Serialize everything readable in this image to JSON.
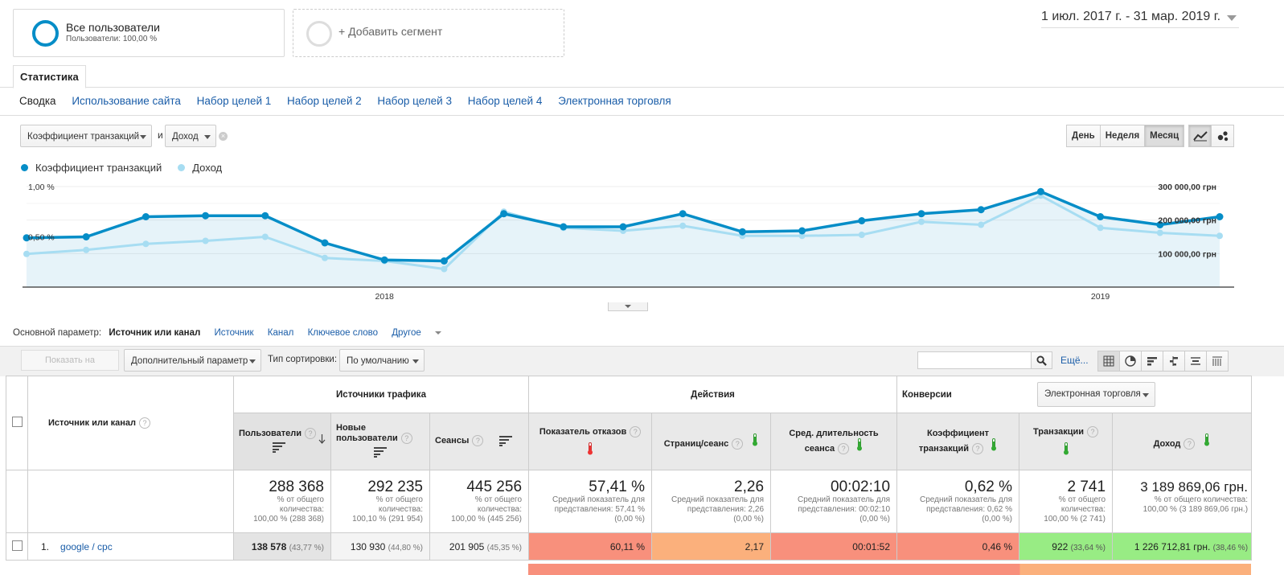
{
  "segments": {
    "active": {
      "title": "Все пользователи",
      "subtitle": "Пользователи: 100,00 %"
    },
    "add_label": "+ Добавить сегмент"
  },
  "date_range": "1 июл. 2017 г. - 31 мар. 2019 г.",
  "tab": "Статистика",
  "subnav": [
    "Сводка",
    "Использование сайта",
    "Набор целей 1",
    "Набор целей 2",
    "Набор целей 3",
    "Набор целей 4",
    "Электронная торговля"
  ],
  "chart_controls": {
    "metric1": "Коэффициент транзакций",
    "and_label": "и",
    "metric2": "Доход",
    "periods": [
      "День",
      "Неделя",
      "Месяц"
    ],
    "active_period": "Месяц",
    "colors": {
      "series1": "#058dc7",
      "series2": "#a7ddf2"
    }
  },
  "chart_data": {
    "type": "line",
    "legend_position": "top-left",
    "grid": true,
    "x": [
      "2017-07",
      "2017-08",
      "2017-09",
      "2017-10",
      "2017-11",
      "2017-12",
      "2018-01",
      "2018-02",
      "2018-03",
      "2018-04",
      "2018-05",
      "2018-06",
      "2018-07",
      "2018-08",
      "2018-09",
      "2018-10",
      "2018-11",
      "2018-12",
      "2019-01",
      "2019-02",
      "2019-03"
    ],
    "x_tick_labels": [
      {
        "at": "2018-01",
        "label": "2018"
      },
      {
        "at": "2019-01",
        "label": "2019"
      }
    ],
    "left_axis": {
      "ticks": [
        "1,00 %",
        "0,50 %"
      ],
      "tick_values": [
        1.0,
        0.5
      ],
      "ylim": [
        0,
        1.0
      ]
    },
    "right_axis": {
      "ticks": [
        "300 000,00 грн",
        "200 000,00 грн",
        "100 000,00 грн"
      ],
      "tick_values": [
        300000,
        200000,
        100000
      ],
      "ylim": [
        0,
        300000
      ]
    },
    "series": [
      {
        "name": "Коэффициент транзакций",
        "axis": "left",
        "values": [
          0.49,
          0.5,
          0.7,
          0.71,
          0.71,
          0.44,
          0.27,
          0.26,
          0.73,
          0.6,
          0.6,
          0.73,
          0.55,
          0.56,
          0.66,
          0.73,
          0.77,
          0.95,
          0.7,
          0.62,
          0.7
        ]
      },
      {
        "name": "Доход",
        "axis": "left",
        "values": [
          0.33,
          0.37,
          0.43,
          0.46,
          0.5,
          0.29,
          0.26,
          0.18,
          0.75,
          0.59,
          0.56,
          0.61,
          0.51,
          0.51,
          0.52,
          0.65,
          0.62,
          0.91,
          0.59,
          0.54,
          0.51
        ]
      }
    ]
  },
  "primary_dimension": {
    "label": "Основной параметр:",
    "current": "Источник или канал",
    "options": [
      "Источник",
      "Канал",
      "Ключевое слово"
    ],
    "other": "Другое"
  },
  "toolbar": {
    "plot_button": "Показать на диаграмме",
    "secondary_dimension": "Дополнительный параметр",
    "sort_label": "Тип сортировки:",
    "sort_value": "По умолчанию",
    "search_placeholder": "",
    "more": "Ещё..."
  },
  "table": {
    "dimension_header": "Источник или канал",
    "groups": {
      "acquisition": "Источники трафика",
      "behavior": "Действия",
      "conversions": "Конверсии",
      "conversions_select": "Электронная торговля"
    },
    "columns": [
      {
        "label": "Пользователи"
      },
      {
        "label": "Новые пользователи"
      },
      {
        "label": "Сеансы"
      },
      {
        "label": "Показатель отказов"
      },
      {
        "label": "Страниц/сеанс"
      },
      {
        "label": "Сред. длительность сеанса"
      },
      {
        "label": "Коэффициент транзакций"
      },
      {
        "label": "Транзакции"
      },
      {
        "label": "Доход"
      }
    ],
    "totals": [
      {
        "value": "288 368",
        "lines": [
          "% от общего",
          "количества:",
          "100,00 % (288 368)"
        ]
      },
      {
        "value": "292 235",
        "lines": [
          "% от общего",
          "количества:",
          "100,10 % (291 954)"
        ]
      },
      {
        "value": "445 256",
        "lines": [
          "% от общего",
          "количества:",
          "100,00 % (445 256)"
        ]
      },
      {
        "value": "57,41 %",
        "lines": [
          "Средний показатель для",
          "представления: 57,41 %",
          "(0,00 %)"
        ]
      },
      {
        "value": "2,26",
        "lines": [
          "Средний показатель для",
          "представления: 2,26",
          "(0,00 %)"
        ]
      },
      {
        "value": "00:02:10",
        "lines": [
          "Средний показатель для",
          "представления: 00:02:10",
          "(0,00 %)"
        ]
      },
      {
        "value": "0,62 %",
        "lines": [
          "Средний показатель для",
          "представления: 0,62 %",
          "(0,00 %)"
        ]
      },
      {
        "value": "2 741",
        "lines": [
          "% от общего",
          "количества:",
          "100,00 % (2 741)"
        ]
      },
      {
        "value": "3 189 869,06 грн.",
        "lines": [
          "% от общего количества:",
          "100,00 % (3 189 869,06 грн.)"
        ]
      }
    ],
    "rows": [
      {
        "index": "1.",
        "source": "google / cpc",
        "users": "138 578",
        "users_pct": "(43,77 %)",
        "new_users": "130 930",
        "new_users_pct": "(44,80 %)",
        "sessions": "201 905",
        "sessions_pct": "(45,35 %)",
        "bounce": "60,11 %",
        "pages": "2,17",
        "duration": "00:01:52",
        "conv_rate": "0,46 %",
        "transactions": "922",
        "transactions_pct": "(33,64 %)",
        "revenue": "1 226 712,81 грн.",
        "revenue_pct": "(38,46 %)"
      }
    ],
    "heat_colors": {
      "bad": "#f8907c",
      "warn": "#fbb07c",
      "good": "#98ec84"
    }
  }
}
